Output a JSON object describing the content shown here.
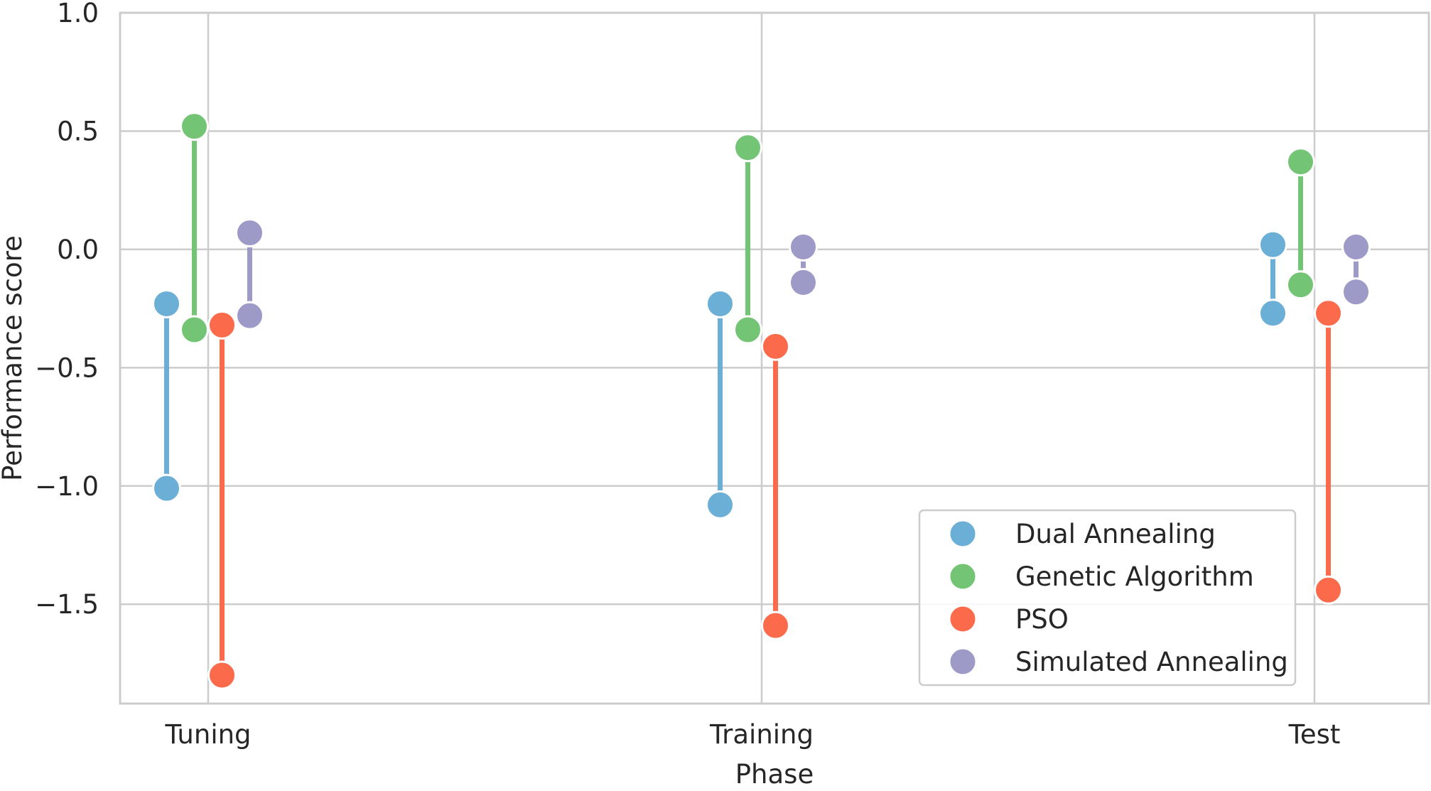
{
  "chart_data": {
    "type": "dumbbell",
    "xlabel": "Phase",
    "ylabel": "Performance score",
    "categories": [
      "Tuning",
      "Training",
      "Test"
    ],
    "ylim": [
      -1.92,
      1.0
    ],
    "yticks": [
      1.0,
      0.5,
      0.0,
      -0.5,
      -1.0,
      -1.5
    ],
    "ytick_labels": [
      "1.0",
      "0.5",
      "0.0",
      "−0.5",
      "−1.0",
      "−1.5"
    ],
    "grid": true,
    "legend_position": "lower-right",
    "series": [
      {
        "name": "Dual Annealing",
        "color": "#6baed6",
        "offset": -1.5,
        "ranges": [
          {
            "category": "Tuning",
            "high": -0.23,
            "low": -1.01
          },
          {
            "category": "Training",
            "high": -0.23,
            "low": -1.08
          },
          {
            "category": "Test",
            "high": 0.02,
            "low": -0.27
          }
        ]
      },
      {
        "name": "Genetic Algorithm",
        "color": "#74c476",
        "offset": -0.5,
        "ranges": [
          {
            "category": "Tuning",
            "high": 0.52,
            "low": -0.34
          },
          {
            "category": "Training",
            "high": 0.43,
            "low": -0.34
          },
          {
            "category": "Test",
            "high": 0.37,
            "low": -0.15
          }
        ]
      },
      {
        "name": "PSO",
        "color": "#fb6a4a",
        "offset": 0.5,
        "ranges": [
          {
            "category": "Tuning",
            "high": -0.32,
            "low": -1.8
          },
          {
            "category": "Training",
            "high": -0.41,
            "low": -1.59
          },
          {
            "category": "Test",
            "high": -0.27,
            "low": -1.44
          }
        ]
      },
      {
        "name": "Simulated Annealing",
        "color": "#9e9ac8",
        "offset": 1.5,
        "ranges": [
          {
            "category": "Tuning",
            "high": 0.07,
            "low": -0.28
          },
          {
            "category": "Training",
            "high": 0.01,
            "low": -0.14
          },
          {
            "category": "Test",
            "high": 0.01,
            "low": -0.18
          }
        ]
      }
    ]
  }
}
